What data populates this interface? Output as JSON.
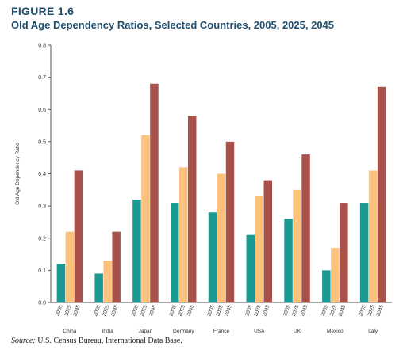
{
  "figure": {
    "label": "FIGURE 1.6",
    "title": "Old Age Dependency Ratios, Selected Countries, 2005, 2025, 2045"
  },
  "source": {
    "key": "Source:",
    "text": "U.S. Census Bureau, International Data Base."
  },
  "chart_data": {
    "type": "bar",
    "title": "Old Age Dependency Ratios, Selected Countries, 2005, 2025, 2045",
    "xlabel": "",
    "ylabel": "Old Age Dependency Ratio",
    "ylim": [
      0,
      0.8
    ],
    "yticks": [
      "0.0",
      "0.1",
      "0.2",
      "0.3",
      "0.4",
      "0.5",
      "0.6",
      "0.7",
      "0.8"
    ],
    "grid": false,
    "categories": [
      "China",
      "India",
      "Japan",
      "Germany",
      "France",
      "USA",
      "UK",
      "Mexico",
      "Italy"
    ],
    "sub_labels": [
      "2005",
      "2025",
      "2045"
    ],
    "series": [
      {
        "name": "2005",
        "color": "#1a9a93",
        "values": [
          0.12,
          0.09,
          0.32,
          0.31,
          0.28,
          0.21,
          0.26,
          0.1,
          0.31
        ]
      },
      {
        "name": "2025",
        "color": "#fbc27e",
        "values": [
          0.22,
          0.13,
          0.52,
          0.42,
          0.4,
          0.33,
          0.35,
          0.17,
          0.41
        ]
      },
      {
        "name": "2045",
        "color": "#a8524b",
        "values": [
          0.41,
          0.22,
          0.68,
          0.58,
          0.5,
          0.38,
          0.46,
          0.31,
          0.67
        ]
      }
    ]
  }
}
